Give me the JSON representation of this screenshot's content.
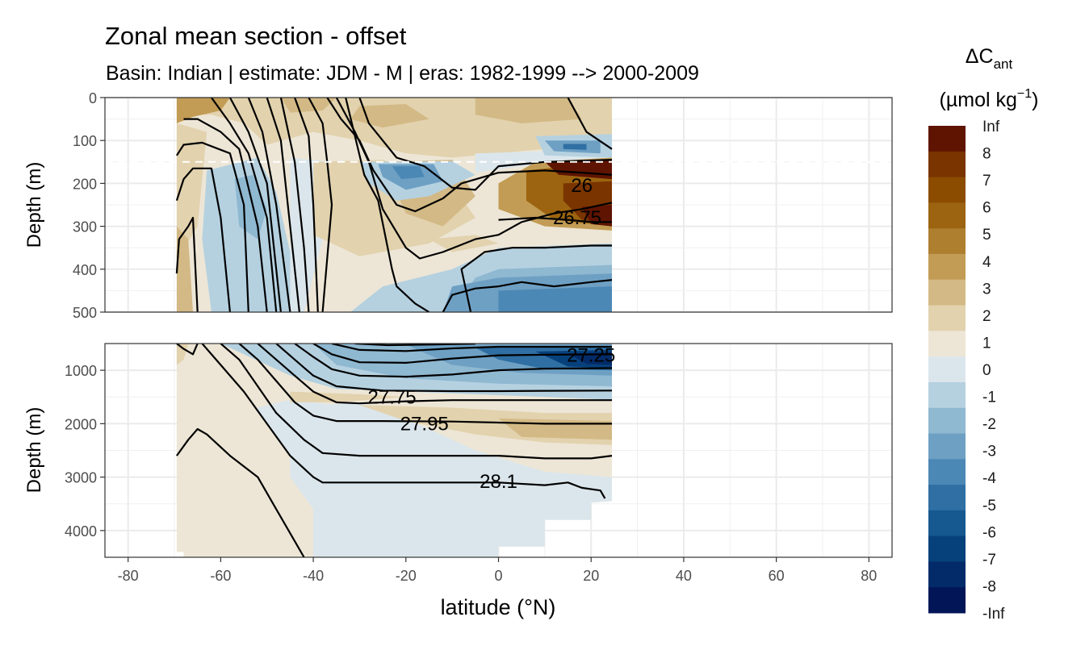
{
  "chart_data": {
    "type": "heatmap",
    "title": "Zonal mean section - offset",
    "subtitle": "Basin: Indian | estimate: JDM - M | eras: 1982-1999 --> 2000-2009",
    "xlabel": "latitude (°N)",
    "x_ticks": [
      "-80",
      "-60",
      "-40",
      "-20",
      "0",
      "20",
      "40",
      "60",
      "80"
    ],
    "xlim": [
      -85,
      85
    ],
    "panels": [
      {
        "name": "upper",
        "ylabel": "Depth (m)",
        "ylim": [
          0,
          500
        ],
        "y_ticks": [
          "0",
          "100",
          "200",
          "300",
          "400",
          "500"
        ],
        "reference_depth": 150,
        "contour_labels": [
          {
            "text": "26",
            "lat": 18,
            "depth": 205
          },
          {
            "text": "26.75",
            "lat": 17,
            "depth": 280
          }
        ]
      },
      {
        "name": "lower",
        "ylabel": "Depth (m)",
        "ylim": [
          500,
          4500
        ],
        "y_ticks": [
          "1000",
          "2000",
          "3000",
          "4000"
        ],
        "contour_labels": [
          {
            "text": "27.25",
            "lat": 20,
            "depth": 720
          },
          {
            "text": "27.75",
            "lat": -23,
            "depth": 1500
          },
          {
            "text": "27.95",
            "lat": -16,
            "depth": 2000
          },
          {
            "text": "28.1",
            "lat": 0,
            "depth": 3080
          }
        ]
      }
    ],
    "legend": {
      "title_prefix": "ΔC",
      "title_sub": "ant",
      "unit_prefix": "(µmol kg",
      "unit_sup": "−1",
      "unit_suffix": ")",
      "placement": "right",
      "labels": [
        "Inf",
        "8",
        "7",
        "6",
        "5",
        "4",
        "3",
        "2",
        "1",
        "0",
        "-1",
        "-2",
        "-3",
        "-4",
        "-5",
        "-6",
        "-7",
        "-8",
        "-Inf"
      ],
      "colors": [
        "#5e1400",
        "#7a3400",
        "#8c4c00",
        "#9c6410",
        "#af7f30",
        "#c29c55",
        "#d3b985",
        "#e2d2ae",
        "#ede6d6",
        "#dbe6ec",
        "#b5d1e0",
        "#8fb8d1",
        "#6ea0c4",
        "#4c88b5",
        "#2f6fa3",
        "#165890",
        "#07417c",
        "#032b69",
        "#011557"
      ]
    }
  }
}
